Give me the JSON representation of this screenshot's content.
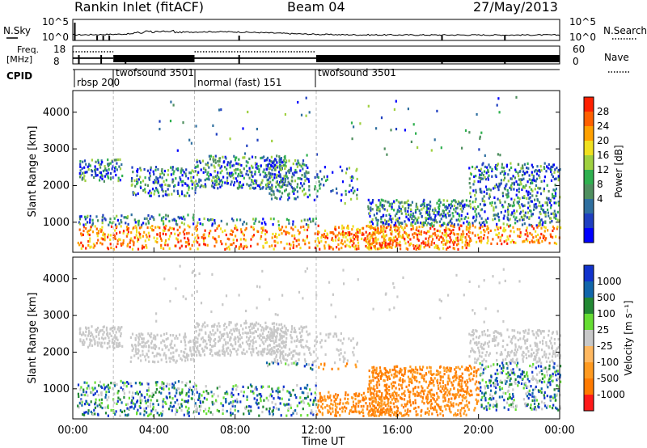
{
  "header": {
    "title": "Rankin Inlet (fitACF)",
    "beam": "Beam 04",
    "date": "27/May/2013"
  },
  "noise": {
    "left_label": "N.Sky",
    "right_label": "N.Search",
    "ticks": [
      "10^5",
      "10^0"
    ]
  },
  "freq": {
    "label_line1": "Freq.",
    "label_line2": "[MHz]",
    "ticks": [
      "18",
      "8"
    ],
    "nave_label": "Nave",
    "nave_ticks": [
      "60",
      "0"
    ]
  },
  "cpid": {
    "label": "CPID",
    "segments": [
      "rbsp 200",
      "twofsound 3501",
      "normal (fast) 151",
      "twofsound 3501"
    ]
  },
  "colors": {
    "power": [
      "#0000ff",
      "#1f3fc0",
      "#2f6f9f",
      "#4f8f5f",
      "#2fb04f",
      "#9fd040",
      "#f0e020",
      "#ffa000",
      "#ff6000",
      "#ff2000"
    ],
    "velocity": [
      "#ff1a1a",
      "#ff7a00",
      "#ff9a20",
      "#ffb860",
      "#c8c8c8",
      "#66dd33",
      "#228833",
      "#1166aa",
      "#1133cc"
    ]
  },
  "chart_data": [
    {
      "type": "heatmap",
      "quantity": "Power",
      "ylabel": "Slant Range [km]",
      "yticks": [
        "1000",
        "2000",
        "3000",
        "4000"
      ],
      "xticks": [
        "00:00",
        "04:00",
        "08:00",
        "12:00",
        "16:00",
        "20:00",
        "00:00"
      ],
      "colorbar_label": "Power [dB]",
      "colorbar_ticks": [
        "28",
        "24",
        "20",
        "16",
        "12",
        "8",
        "4"
      ],
      "ylim": [
        180,
        4590
      ],
      "xlim_hours": [
        0,
        24
      ]
    },
    {
      "type": "heatmap",
      "quantity": "Velocity",
      "ylabel": "Slant Range [km]",
      "xlabel": "Time UT",
      "yticks": [
        "1000",
        "2000",
        "3000",
        "4000"
      ],
      "xticks": [
        "00:00",
        "04:00",
        "08:00",
        "12:00",
        "16:00",
        "20:00",
        "00:00"
      ],
      "colorbar_label": "Velocity [m s⁻¹]",
      "colorbar_ticks": [
        "1000",
        "500",
        "100",
        "25",
        "-25",
        "-100",
        "-500",
        "-1000"
      ],
      "ylim": [
        180,
        4590
      ],
      "xlim_hours": [
        0,
        24
      ]
    }
  ]
}
